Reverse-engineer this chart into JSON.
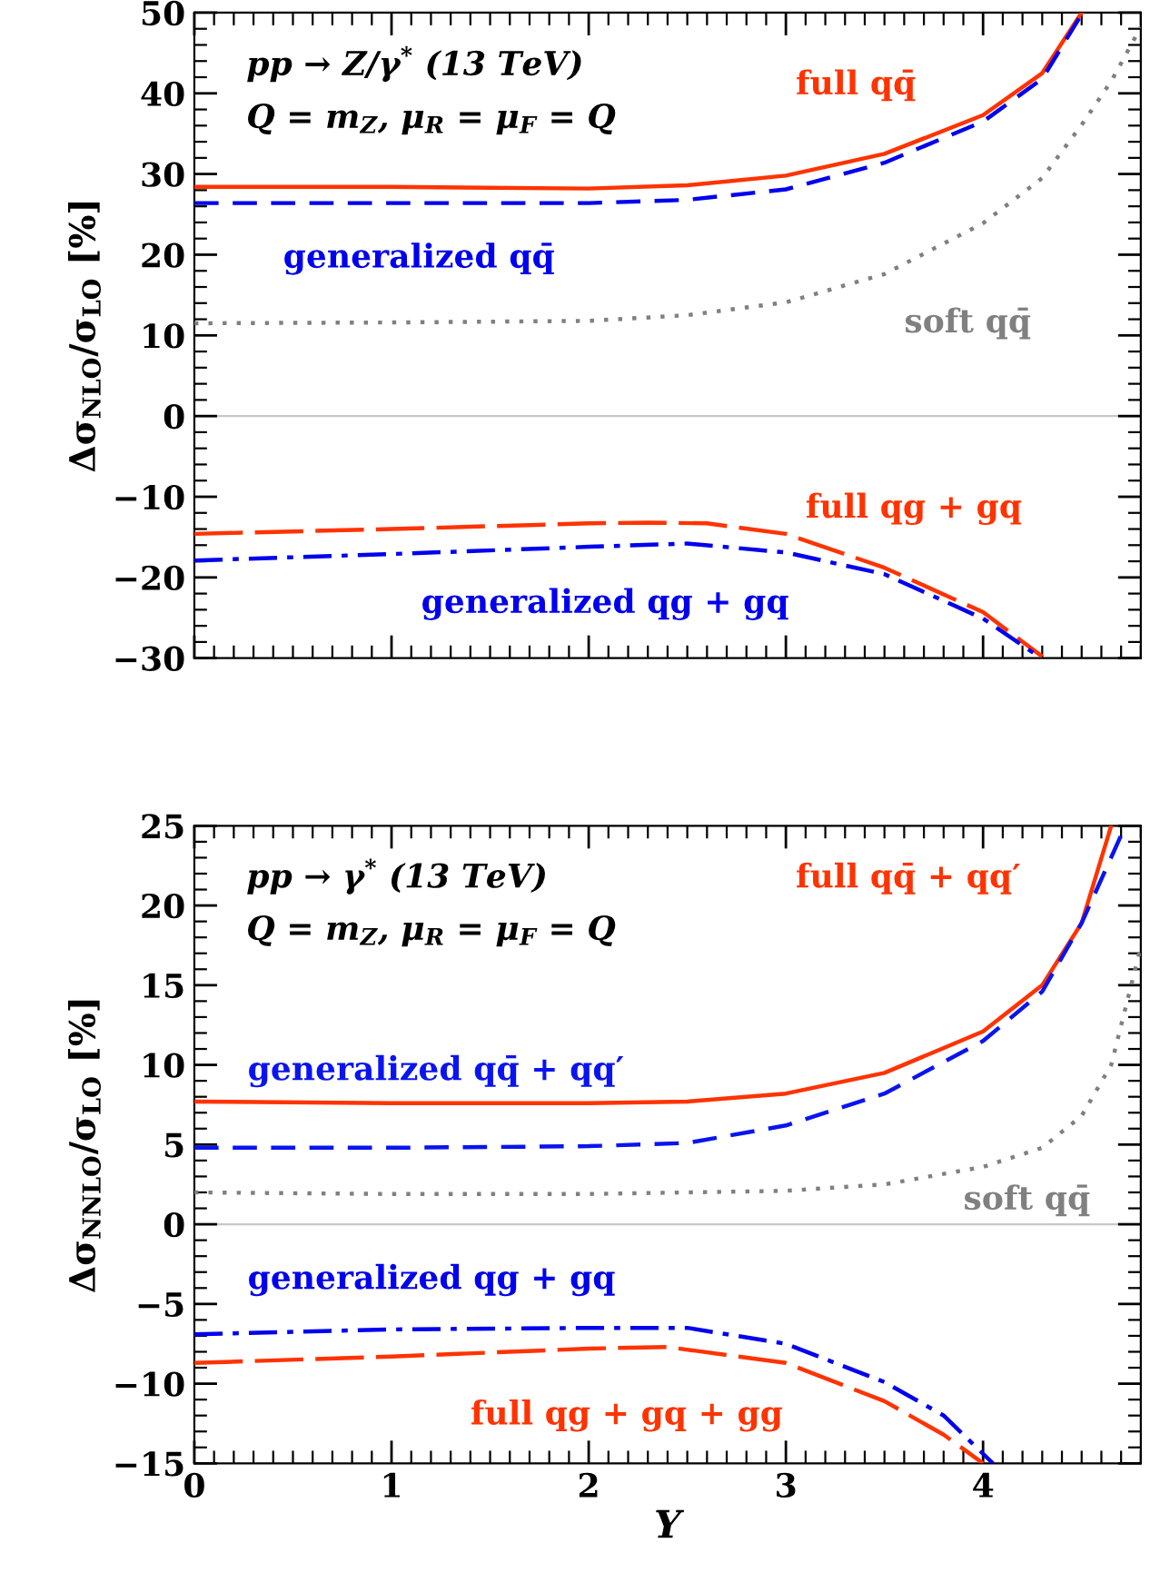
{
  "chart_data": [
    {
      "type": "line",
      "ylabel": "Δσ$_{NLO}$/σ$_{LO}$ [%]",
      "annotations": [
        "pp → Z/γ$^{*}$ (13 TeV)",
        "Q = m$_{Z}$, μ$_{R}$ = μ$_{F}$ = Q"
      ],
      "xlim": [
        0,
        4.8
      ],
      "xticks": [
        0,
        1,
        2,
        3,
        4
      ],
      "ylim": [
        -30,
        50
      ],
      "yticks": [
        {
          "value": -30,
          "label": "−30"
        },
        {
          "value": -20,
          "label": "−20"
        },
        {
          "value": -10,
          "label": "−10"
        },
        0,
        10,
        20,
        30,
        40,
        50
      ],
      "grid": false,
      "tick_labels": "y",
      "ref_lines": [
        {
          "axis": "y",
          "value": 0,
          "color": "#c8c8c8"
        }
      ],
      "series": [
        {
          "name": "full qq̄",
          "color": "#ff3300",
          "line_style": "solid",
          "x": [
            0,
            1,
            2,
            2.5,
            3,
            3.5,
            4,
            4.3,
            4.5
          ],
          "values": [
            28.4,
            28.4,
            28.2,
            28.6,
            29.8,
            32.5,
            37.3,
            42.5,
            50
          ]
        },
        {
          "name": "generalized qq̄",
          "color": "#0000ee",
          "line_style": "dashed",
          "x": [
            0,
            1,
            2,
            2.5,
            3,
            3.5,
            4,
            4.3,
            4.5
          ],
          "values": [
            26.4,
            26.4,
            26.4,
            26.8,
            28.1,
            31.4,
            36.5,
            41.8,
            49.8
          ]
        },
        {
          "name": "soft qq̄",
          "color": "#808080",
          "line_style": "dotted",
          "x": [
            0,
            1,
            2,
            2.5,
            3,
            3.5,
            4,
            4.3,
            4.5,
            4.65,
            4.8
          ],
          "values": [
            11.5,
            11.6,
            11.8,
            12.5,
            14.1,
            17.6,
            23.9,
            29.5,
            36.1,
            41.5,
            48.2
          ]
        },
        {
          "name": "full qg + gq",
          "color": "#ff3300",
          "line_style": "longdashed",
          "x": [
            0,
            1,
            2,
            2.3,
            2.6,
            3,
            3.5,
            4,
            4.3
          ],
          "values": [
            -14.6,
            -14.0,
            -13.3,
            -13.2,
            -13.3,
            -14.6,
            -18.8,
            -24.3,
            -29.8
          ]
        },
        {
          "name": "generalized qg + gq",
          "color": "#0000ee",
          "line_style": "dashdot",
          "x": [
            0,
            1,
            2,
            2.5,
            3,
            3.5,
            4,
            4.27
          ],
          "values": [
            -17.9,
            -17.1,
            -16.2,
            -15.8,
            -16.9,
            -19.6,
            -25.1,
            -29.6
          ]
        }
      ]
    },
    {
      "type": "line",
      "xlabel": "Y",
      "ylabel": "Δσ$_{NNLO}$/σ$_{LO}$ [%]",
      "annotations": [
        "pp → γ$^{*}$ (13 TeV)",
        "Q = m$_{Z}$, μ$_{R}$ = μ$_{F}$ = Q"
      ],
      "xlim": [
        0,
        4.8
      ],
      "xticks": [
        0,
        1,
        2,
        3,
        4
      ],
      "ylim": [
        -15,
        25
      ],
      "yticks": [
        {
          "value": -15,
          "label": "−15"
        },
        {
          "value": -10,
          "label": "−10"
        },
        {
          "value": -5,
          "label": "−5"
        },
        0,
        5,
        10,
        15,
        20,
        25
      ],
      "grid": false,
      "ref_lines": [
        {
          "axis": "y",
          "value": 0,
          "color": "#c8c8c8"
        }
      ],
      "series": [
        {
          "name": "full qq̄ + qq′",
          "color": "#ff3300",
          "line_style": "solid",
          "x": [
            0,
            1,
            2,
            2.5,
            3,
            3.5,
            4,
            4.3,
            4.5,
            4.65
          ],
          "values": [
            7.7,
            7.6,
            7.6,
            7.7,
            8.2,
            9.5,
            12.1,
            15.0,
            18.9,
            25
          ]
        },
        {
          "name": "generalized qq̄ + qq′",
          "color": "#0a14f0",
          "line_style": "dashed",
          "x": [
            0,
            1,
            2,
            2.5,
            3,
            3.5,
            4,
            4.3,
            4.5,
            4.7
          ],
          "values": [
            4.8,
            4.8,
            4.9,
            5.1,
            6.2,
            8.2,
            11.5,
            14.6,
            18.9,
            24.4
          ]
        },
        {
          "name": "soft qq̄",
          "color": "#808080",
          "line_style": "dotted",
          "x": [
            0,
            1,
            2,
            3,
            3.5,
            4,
            4.3,
            4.5,
            4.65,
            4.8
          ],
          "values": [
            2.0,
            1.9,
            1.9,
            2.1,
            2.5,
            3.6,
            4.8,
            6.8,
            10.0,
            17.4
          ]
        },
        {
          "name": "generalized qg + gq",
          "color": "#0000ee",
          "line_style": "dashdot",
          "x": [
            0,
            1,
            2,
            2.5,
            3,
            3.5,
            3.8,
            4.05
          ],
          "values": [
            -6.9,
            -6.6,
            -6.5,
            -6.5,
            -7.5,
            -9.9,
            -12.0,
            -15
          ]
        },
        {
          "name": "full qg + gq + gg",
          "color": "#ff3300",
          "line_style": "longdashed",
          "x": [
            0,
            1,
            2,
            2.4,
            3,
            3.5,
            3.8,
            4.0
          ],
          "values": [
            -8.7,
            -8.3,
            -7.8,
            -7.7,
            -8.7,
            -11.1,
            -13.2,
            -15
          ]
        }
      ]
    }
  ]
}
